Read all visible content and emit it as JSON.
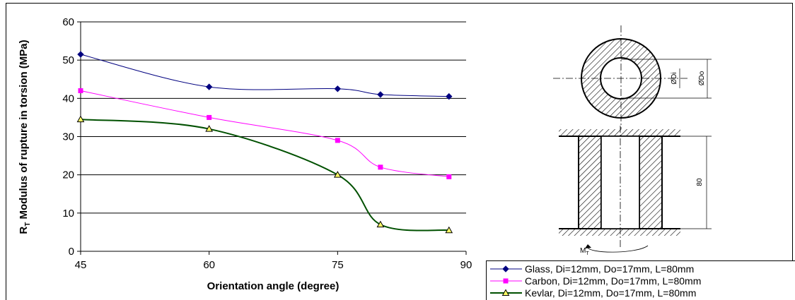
{
  "chart_data": {
    "type": "line",
    "title": "",
    "xlabel": "Orientation angle (degree)",
    "ylabel_main": "R",
    "ylabel_sub": "T",
    "ylabel_rest": " Modulus of rupture in torsion (MPa)",
    "xlim": [
      45,
      90
    ],
    "ylim": [
      0,
      60
    ],
    "xticks": [
      45,
      60,
      75,
      90
    ],
    "yticks": [
      0,
      10,
      20,
      30,
      40,
      50,
      60
    ],
    "grid": "horizontal",
    "legend_position": "bottom-right",
    "series": [
      {
        "name": "Glass, Di=12mm, Do=17mm, L=80mm",
        "color": "#000080",
        "marker": "diamond",
        "x": [
          45,
          60,
          75,
          80,
          88
        ],
        "y": [
          51.5,
          43,
          42.5,
          41,
          40.5
        ]
      },
      {
        "name": "Carbon, Di=12mm, Do=17mm, L=80mm",
        "color": "#ff00ff",
        "marker": "square",
        "x": [
          45,
          60,
          75,
          80,
          88
        ],
        "y": [
          42,
          35,
          29,
          22,
          19.5
        ]
      },
      {
        "name": "Kevlar, Di=12mm, Do=17mm, L=80mm",
        "color": "#005000",
        "marker": "triangle",
        "x": [
          45,
          60,
          75,
          80,
          88
        ],
        "y": [
          34.5,
          32,
          20,
          7,
          5.5
        ]
      }
    ]
  },
  "diagram": {
    "inner_diameter_label": "ØDi",
    "outer_diameter_label": "ØDo",
    "length_label": "80",
    "torque_label_main": "M",
    "torque_label_sub": "T"
  }
}
